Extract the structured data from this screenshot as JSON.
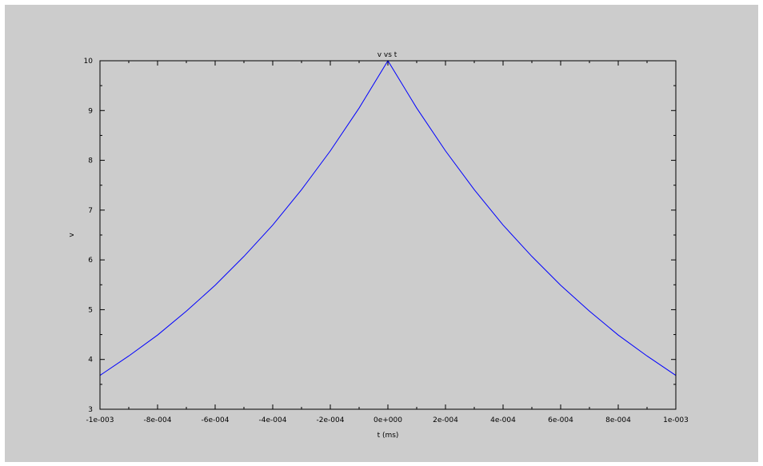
{
  "chart_data": {
    "type": "line",
    "title": "v vs t",
    "xlabel": "t (ms)",
    "ylabel": "v",
    "xlim": [
      -0.001,
      0.001
    ],
    "ylim": [
      3,
      10
    ],
    "x_ticks": [
      -0.001,
      -0.0008,
      -0.0006,
      -0.0004,
      -0.0002,
      0,
      0.0002,
      0.0004,
      0.0006,
      0.0008,
      0.001
    ],
    "x_tick_labels": [
      "-1e-003",
      "-8e-004",
      "-6e-004",
      "-4e-004",
      "-2e-004",
      "0e+000",
      "2e-004",
      "4e-004",
      "6e-004",
      "8e-004",
      "1e-003"
    ],
    "y_ticks": [
      3,
      4,
      5,
      6,
      7,
      8,
      9,
      10
    ],
    "y_tick_labels": [
      "3",
      "4",
      "5",
      "6",
      "7",
      "8",
      "9",
      "10"
    ],
    "grid": false,
    "line_color": "#0000ff",
    "background_color": "#cccccc",
    "series": [
      {
        "x": [
          -0.001,
          -0.0009,
          -0.0008,
          -0.0007,
          -0.0006,
          -0.0005,
          -0.0004,
          -0.0003,
          -0.0002,
          -0.0001,
          0,
          0.0001,
          0.0002,
          0.0003,
          0.0004,
          0.0005,
          0.0006,
          0.0007,
          0.0008,
          0.0009,
          0.001
        ],
        "y": [
          3.68,
          4.07,
          4.49,
          4.97,
          5.49,
          6.07,
          6.7,
          7.41,
          8.19,
          9.05,
          10,
          9.05,
          8.19,
          7.41,
          6.7,
          6.07,
          5.49,
          4.97,
          4.49,
          4.07,
          3.68
        ]
      }
    ]
  }
}
